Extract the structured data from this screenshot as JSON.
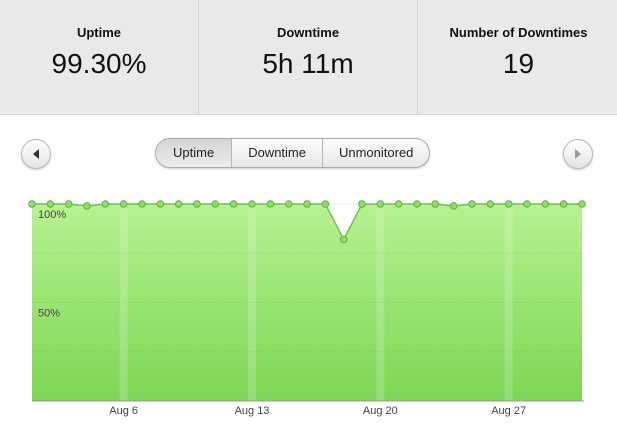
{
  "stats": [
    {
      "label": "Uptime",
      "value": "99.30%"
    },
    {
      "label": "Downtime",
      "value": "5h 11m"
    },
    {
      "label": "Number of Downtimes",
      "value": "19"
    }
  ],
  "tabs": [
    "Uptime",
    "Downtime",
    "Unmonitored"
  ],
  "chart_data": {
    "type": "area",
    "categories": [
      null,
      null,
      null,
      null,
      null,
      "Aug 6",
      null,
      null,
      null,
      null,
      null,
      null,
      "Aug 13",
      null,
      null,
      null,
      null,
      null,
      null,
      "Aug 20",
      null,
      null,
      null,
      null,
      null,
      null,
      "Aug 27",
      null,
      null,
      null,
      null
    ],
    "series": [
      {
        "name": "Uptime",
        "color": "#8fdc66",
        "values": [
          100,
          100,
          100,
          99,
          100,
          100,
          100,
          100,
          100,
          100,
          100,
          100,
          100,
          100,
          100,
          100,
          100,
          82,
          100,
          100,
          100,
          100,
          100,
          99,
          100,
          100,
          100,
          100,
          100,
          100,
          100
        ]
      }
    ],
    "ylim": [
      0,
      100
    ],
    "yticks": [
      {
        "value": 50,
        "label": "50%"
      },
      {
        "value": 100,
        "label": "100%"
      }
    ],
    "minor_yticks": [
      25,
      75
    ],
    "grid": true
  }
}
